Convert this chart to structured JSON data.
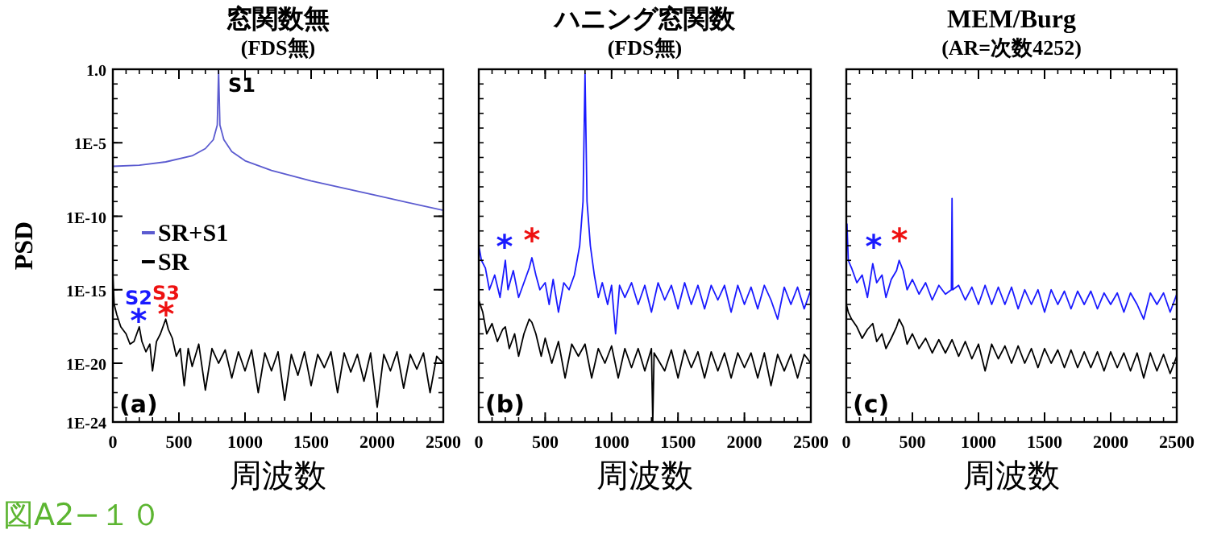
{
  "chart_data": [
    {
      "type": "line",
      "title": "窓関数無",
      "subtitle": "(FDS無)",
      "xlabel": "周波数",
      "ylabel": "PSD",
      "log": "y",
      "xlim": [
        0,
        2500
      ],
      "xticks": [
        0,
        500,
        1000,
        1500,
        2000,
        2500
      ],
      "ylim": [
        1e-24,
        1
      ],
      "yticks": [
        {
          "value": 1,
          "label": "1.0"
        },
        {
          "value": 1e-05,
          "label": "1E-5"
        },
        {
          "value": 1e-10,
          "label": "1E-10"
        },
        {
          "value": 1e-15,
          "label": "1E-15"
        },
        {
          "value": 1e-20,
          "label": "1E-20"
        },
        {
          "value": 1e-24,
          "label": "1E-24"
        }
      ],
      "legend": "left",
      "grid": false,
      "series": [
        {
          "name": "SR+S1",
          "color": "#5b5bd0",
          "x": [
            0,
            200,
            400,
            600,
            700,
            760,
            790,
            800,
            810,
            840,
            900,
            1000,
            1200,
            1500,
            2000,
            2500
          ],
          "values": [
            2.5e-07,
            3e-07,
            5e-07,
            1.3e-06,
            4e-06,
            1.6e-05,
            0.00016,
            0.8,
            0.00016,
            1.6e-05,
            2.5e-06,
            6e-07,
            1.3e-07,
            2.5e-08,
            2.5e-09,
            2.5e-10
          ]
        },
        {
          "name": "SR",
          "color": "#000000",
          "x": [
            0,
            10,
            30,
            60,
            100,
            130,
            160,
            200,
            220,
            250,
            280,
            300,
            330,
            360,
            400,
            420,
            450,
            480,
            510,
            540,
            570,
            600,
            650,
            700,
            750,
            800,
            850,
            900,
            950,
            1000,
            1050,
            1100,
            1150,
            1200,
            1250,
            1300,
            1350,
            1400,
            1450,
            1500,
            1550,
            1600,
            1650,
            1700,
            1750,
            1800,
            1850,
            1900,
            1950,
            2000,
            2050,
            2100,
            2150,
            2200,
            2250,
            2300,
            2350,
            2400,
            2450,
            2500
          ],
          "values": [
            1e-14,
            1e-16,
            2e-17,
            3e-18,
            1e-18,
            2e-19,
            3e-19,
            3e-18,
            3e-19,
            6e-20,
            2e-19,
            3e-21,
            3e-19,
            1e-18,
            1e-17,
            2e-18,
            5e-19,
            3e-20,
            1e-19,
            3e-22,
            1e-19,
            6e-21,
            2e-19,
            1.5e-22,
            1e-19,
            1e-20,
            8e-20,
            1e-21,
            6e-20,
            3e-21,
            8e-20,
            1e-22,
            5e-20,
            3e-21,
            6e-20,
            3e-23,
            4e-20,
            1.5e-21,
            6e-20,
            3e-22,
            4e-20,
            5e-21,
            6e-20,
            1e-22,
            5e-20,
            2.5e-21,
            4e-20,
            6e-22,
            5e-20,
            1e-23,
            4e-20,
            3e-21,
            6e-20,
            2e-22,
            4e-20,
            4e-21,
            5e-20,
            1e-22,
            3e-20,
            1e-20
          ]
        }
      ],
      "annotations": [
        "(a)",
        "図A2−１０",
        "S1",
        "S2",
        "*",
        "S3",
        "*"
      ]
    },
    {
      "type": "line",
      "title": "ハニング窓関数",
      "subtitle": "(FDS無)",
      "xlabel": "周波数",
      "log": "y",
      "xlim": [
        0,
        2500
      ],
      "xticks": [
        0,
        500,
        1000,
        1500,
        2000,
        2500
      ],
      "ylim": [
        1e-24,
        1
      ],
      "tick_labels": "x",
      "grid": false,
      "series": [
        {
          "color": "#1a1aff",
          "x": [
            0,
            20,
            50,
            80,
            120,
            160,
            200,
            220,
            260,
            300,
            340,
            380,
            400,
            430,
            460,
            500,
            530,
            560,
            600,
            640,
            680,
            720,
            760,
            785,
            800,
            815,
            840,
            870,
            900,
            930,
            970,
            1000,
            1030,
            1060,
            1100,
            1150,
            1200,
            1250,
            1300,
            1350,
            1400,
            1450,
            1500,
            1550,
            1600,
            1650,
            1700,
            1750,
            1800,
            1850,
            1900,
            1950,
            2000,
            2050,
            2100,
            2150,
            2200,
            2250,
            2300,
            2350,
            2400,
            2450,
            2500
          ],
          "values": [
            1e-12,
            1e-13,
            3e-14,
            1e-15,
            1e-14,
            3e-16,
            1e-13,
            1e-15,
            2e-14,
            3e-16,
            3e-15,
            3e-14,
            1.5e-13,
            1e-14,
            1e-15,
            3e-15,
            1e-16,
            5e-15,
            3e-17,
            3e-15,
            1e-15,
            1e-14,
            1e-12,
            1e-09,
            0.5,
            1e-09,
            1e-12,
            1e-14,
            3e-16,
            3e-15,
            1e-16,
            2e-15,
            1e-18,
            2e-15,
            3e-16,
            3e-15,
            1e-16,
            2e-15,
            3e-17,
            3e-15,
            2e-16,
            2e-15,
            5e-17,
            3e-15,
            1e-16,
            2e-15,
            5e-17,
            2e-15,
            2e-16,
            2e-15,
            3e-17,
            2e-15,
            1e-16,
            1.5e-15,
            5e-17,
            2e-15,
            2e-16,
            1e-17,
            1.5e-15,
            1e-16,
            1.5e-15,
            5e-17,
            1e-15
          ]
        },
        {
          "color": "#000000",
          "x": [
            0,
            30,
            60,
            100,
            140,
            180,
            200,
            230,
            270,
            300,
            340,
            380,
            400,
            430,
            470,
            500,
            550,
            600,
            650,
            700,
            750,
            800,
            850,
            900,
            950,
            1000,
            1050,
            1100,
            1150,
            1200,
            1250,
            1300,
            1310,
            1320,
            1400,
            1450,
            1500,
            1550,
            1600,
            1650,
            1700,
            1750,
            1800,
            1850,
            1900,
            1950,
            2000,
            2050,
            2100,
            2150,
            2200,
            2250,
            2300,
            2350,
            2400,
            2450,
            2500
          ],
          "values": [
            2e-16,
            3e-17,
            1e-18,
            5e-18,
            3e-19,
            2e-18,
            3e-18,
            1e-19,
            1e-18,
            3e-20,
            1e-18,
            1e-17,
            6e-18,
            1e-18,
            3e-20,
            5e-19,
            1e-20,
            3e-19,
            1e-21,
            2e-19,
            3e-20,
            2e-19,
            1e-21,
            1e-19,
            1e-20,
            1.5e-19,
            1e-21,
            1e-19,
            5e-21,
            1e-19,
            3e-21,
            1e-19,
            1e-24,
            5e-20,
            3e-21,
            8e-20,
            1e-21,
            8e-20,
            5e-21,
            6e-20,
            1e-21,
            6e-20,
            3e-21,
            5e-20,
            1e-21,
            5e-20,
            5e-21,
            5e-20,
            1e-21,
            5e-20,
            3e-22,
            4e-20,
            3e-21,
            4e-20,
            1e-21,
            4e-20,
            1e-20
          ]
        }
      ],
      "annotations": [
        "(b)",
        "*",
        "*"
      ]
    },
    {
      "type": "line",
      "title": "MEM/Burg",
      "subtitle": "(AR=次数4252)",
      "xlabel": "周波数",
      "log": "y",
      "xlim": [
        0,
        2500
      ],
      "xticks": [
        0,
        500,
        1000,
        1500,
        2000,
        2500
      ],
      "ylim": [
        1e-24,
        1
      ],
      "tick_labels": "x",
      "grid": false,
      "series": [
        {
          "color": "#1a1aff",
          "x": [
            5,
            15,
            40,
            80,
            120,
            160,
            200,
            230,
            270,
            300,
            340,
            380,
            400,
            430,
            460,
            500,
            550,
            600,
            650,
            700,
            750,
            795,
            800,
            805,
            850,
            900,
            950,
            1000,
            1050,
            1100,
            1150,
            1200,
            1250,
            1300,
            1350,
            1400,
            1450,
            1500,
            1550,
            1600,
            1650,
            1700,
            1750,
            1800,
            1850,
            1900,
            1950,
            2000,
            2050,
            2100,
            2150,
            2200,
            2250,
            2300,
            2350,
            2400,
            2450,
            2500
          ],
          "values": [
            3e-11,
            1e-13,
            3e-14,
            3e-15,
            1e-14,
            3e-16,
            6e-14,
            3e-15,
            1e-14,
            3e-16,
            5e-15,
            2e-14,
            1e-13,
            2e-14,
            1e-15,
            5e-15,
            5e-16,
            3e-15,
            2e-16,
            2e-15,
            5e-16,
            1e-15,
            1.6e-09,
            1e-15,
            2e-15,
            2e-16,
            1.5e-15,
            1e-16,
            2e-15,
            1e-16,
            1.5e-15,
            1e-16,
            1.5e-15,
            5e-17,
            1e-15,
            1e-16,
            1e-15,
            3e-17,
            1e-15,
            1e-16,
            8e-16,
            5e-17,
            8e-16,
            1e-16,
            8e-16,
            5e-17,
            6e-16,
            1e-16,
            6e-16,
            3e-17,
            6e-16,
            1e-16,
            1e-17,
            6e-16,
            1e-16,
            6e-16,
            3e-17,
            5e-16
          ]
        },
        {
          "color": "#000000",
          "x": [
            0,
            15,
            40,
            80,
            120,
            160,
            200,
            230,
            270,
            300,
            340,
            380,
            400,
            430,
            460,
            500,
            550,
            600,
            650,
            700,
            750,
            800,
            850,
            900,
            950,
            1000,
            1050,
            1100,
            1150,
            1200,
            1250,
            1300,
            1350,
            1400,
            1450,
            1500,
            1550,
            1600,
            1650,
            1700,
            1750,
            1800,
            1850,
            1900,
            1950,
            2000,
            2050,
            2100,
            2150,
            2200,
            2250,
            2300,
            2350,
            2400,
            2450,
            2500
          ],
          "values": [
            1e-16,
            3e-17,
            1e-17,
            3e-18,
            5e-19,
            2e-18,
            5e-18,
            3e-19,
            1e-18,
            1e-19,
            5e-19,
            3e-18,
            1e-17,
            3e-18,
            2e-19,
            1e-18,
            1e-19,
            5e-19,
            5e-20,
            4e-19,
            5e-20,
            4e-19,
            3e-20,
            3e-19,
            2e-20,
            2e-19,
            3e-21,
            2e-19,
            2e-20,
            1.5e-19,
            1e-20,
            1.5e-19,
            1e-20,
            1e-19,
            5e-21,
            1e-19,
            1e-20,
            8e-20,
            5e-21,
            8e-20,
            5e-21,
            6e-20,
            5e-21,
            6e-20,
            3e-21,
            6e-20,
            5e-21,
            5e-20,
            3e-21,
            5e-20,
            1e-21,
            5e-20,
            3e-21,
            4e-20,
            2e-21,
            3e-20
          ]
        }
      ],
      "annotations": [
        "(c)",
        "*",
        "*"
      ]
    }
  ]
}
